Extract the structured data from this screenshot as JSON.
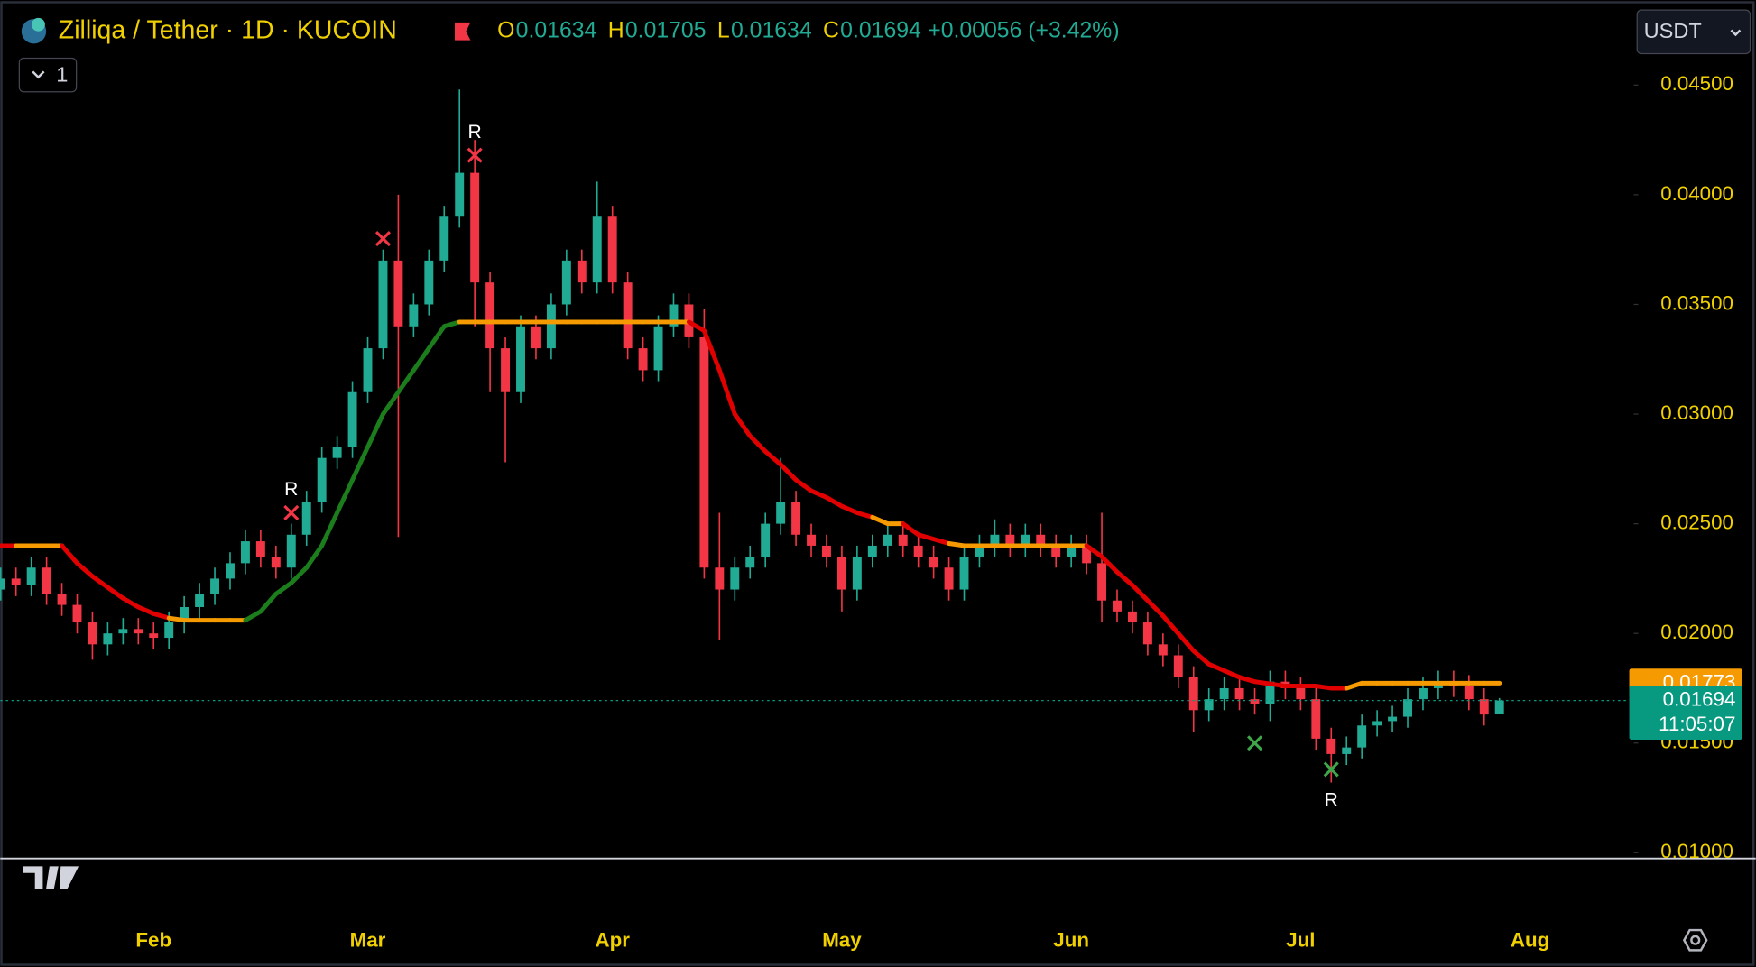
{
  "chart_data": {
    "type": "candlestick",
    "title": "Zilliqa / Tether · 1D · KUCOIN",
    "ohlc_legend": [
      {
        "key": "O",
        "value": "0.01634"
      },
      {
        "key": "H",
        "value": "0.01705"
      },
      {
        "key": "L",
        "value": "0.01634"
      },
      {
        "key": "C",
        "value": "0.01694"
      }
    ],
    "change": "+0.00056 (+3.42%)",
    "currency": "USDT",
    "pane_toggle": "1",
    "categories": [
      null,
      null,
      null,
      null,
      null,
      null,
      null,
      null,
      null,
      null,
      "Feb",
      null,
      null,
      null,
      null,
      null,
      null,
      null,
      null,
      null,
      null,
      null,
      null,
      null,
      "Mar",
      null,
      null,
      null,
      null,
      null,
      null,
      null,
      null,
      null,
      null,
      null,
      null,
      null,
      null,
      null,
      "Apr",
      null,
      null,
      null,
      null,
      null,
      null,
      null,
      null,
      null,
      null,
      null,
      null,
      null,
      null,
      "May",
      null,
      null,
      null,
      null,
      null,
      null,
      null,
      null,
      null,
      null,
      null,
      null,
      null,
      null,
      "Jun",
      null,
      null,
      null,
      null,
      null,
      null,
      null,
      null,
      null,
      null,
      null,
      null,
      null,
      null,
      "Jul",
      null,
      null,
      null,
      null,
      null,
      null,
      null,
      null,
      null,
      null,
      null,
      null,
      null,
      null,
      "Aug"
    ],
    "open": [
      0.022,
      0.0225,
      0.0222,
      0.023,
      0.0218,
      0.0213,
      0.0205,
      0.0195,
      0.02,
      0.0202,
      0.02,
      0.0198,
      0.0205,
      0.0212,
      0.0218,
      0.0225,
      0.0232,
      0.0242,
      0.0235,
      0.023,
      0.0245,
      0.026,
      0.028,
      0.0285,
      0.031,
      0.033,
      0.037,
      0.034,
      0.035,
      0.037,
      0.039,
      0.041,
      0.036,
      0.033,
      0.031,
      0.034,
      0.033,
      0.035,
      0.037,
      0.036,
      0.039,
      0.036,
      0.033,
      0.032,
      0.034,
      0.035,
      0.0335,
      0.023,
      0.022,
      0.023,
      0.0235,
      0.025,
      0.026,
      0.0245,
      0.024,
      0.0235,
      0.022,
      0.0235,
      0.024,
      0.0245,
      0.024,
      0.0235,
      0.023,
      0.022,
      0.0235,
      0.024,
      0.0245,
      0.024,
      0.0245,
      0.024,
      0.0235,
      0.024,
      0.0232,
      0.0215,
      0.021,
      0.0205,
      0.0195,
      0.019,
      0.018,
      0.0165,
      0.017,
      0.0175,
      0.017,
      0.0168,
      0.0178,
      0.0175,
      0.017,
      0.0152,
      0.0145,
      0.0148,
      0.0158,
      0.016,
      0.0162,
      0.017,
      0.0175,
      0.0178,
      0.0176,
      0.017,
      0.01634,
      null,
      null
    ],
    "high": [
      0.023,
      0.023,
      0.0235,
      0.0235,
      0.0223,
      0.0218,
      0.021,
      0.0205,
      0.0207,
      0.0207,
      0.0205,
      0.021,
      0.0217,
      0.0223,
      0.023,
      0.0237,
      0.0247,
      0.0247,
      0.024,
      0.025,
      0.0265,
      0.0285,
      0.029,
      0.0315,
      0.0335,
      0.0375,
      0.04,
      0.0355,
      0.0375,
      0.0395,
      0.0448,
      0.0425,
      0.0365,
      0.0335,
      0.0345,
      0.0345,
      0.0355,
      0.0375,
      0.0375,
      0.0406,
      0.0395,
      0.0365,
      0.0335,
      0.0345,
      0.0355,
      0.0355,
      0.0348,
      0.0255,
      0.0235,
      0.024,
      0.0255,
      0.028,
      0.0265,
      0.025,
      0.0245,
      0.024,
      0.024,
      0.0245,
      0.025,
      0.025,
      0.0245,
      0.024,
      0.0235,
      0.024,
      0.0245,
      0.0252,
      0.025,
      0.025,
      0.025,
      0.0245,
      0.0245,
      0.0245,
      0.0255,
      0.022,
      0.0215,
      0.021,
      0.02,
      0.0195,
      0.0185,
      0.0175,
      0.018,
      0.018,
      0.0175,
      0.0183,
      0.0183,
      0.018,
      0.0175,
      0.0157,
      0.0153,
      0.0163,
      0.0165,
      0.0167,
      0.0175,
      0.018,
      0.0183,
      0.0183,
      0.0181,
      0.0175,
      0.01705,
      null,
      null
    ],
    "low": [
      0.0215,
      0.0217,
      0.0217,
      0.0213,
      0.0208,
      0.02,
      0.0188,
      0.019,
      0.0195,
      0.0195,
      0.0193,
      0.0193,
      0.02,
      0.0207,
      0.0213,
      0.022,
      0.0227,
      0.023,
      0.0225,
      0.0225,
      0.024,
      0.0255,
      0.0275,
      0.028,
      0.0305,
      0.0325,
      0.0244,
      0.0335,
      0.0345,
      0.0365,
      0.0385,
      0.034,
      0.031,
      0.0278,
      0.0305,
      0.0325,
      0.0325,
      0.0345,
      0.0355,
      0.0355,
      0.0355,
      0.0325,
      0.0315,
      0.0315,
      0.0335,
      0.033,
      0.0225,
      0.0197,
      0.0215,
      0.0225,
      0.023,
      0.0245,
      0.024,
      0.0235,
      0.023,
      0.021,
      0.0215,
      0.023,
      0.0235,
      0.0235,
      0.023,
      0.0225,
      0.0215,
      0.0215,
      0.023,
      0.0235,
      0.0235,
      0.0235,
      0.0235,
      0.023,
      0.023,
      0.0227,
      0.0205,
      0.0205,
      0.02,
      0.019,
      0.0185,
      0.0175,
      0.0155,
      0.016,
      0.0165,
      0.0165,
      0.0163,
      0.016,
      0.017,
      0.0165,
      0.0147,
      0.0132,
      0.014,
      0.0143,
      0.0153,
      0.0155,
      0.0157,
      0.0165,
      0.017,
      0.0171,
      0.0165,
      0.0158,
      0.01634,
      null,
      null
    ],
    "close": [
      0.0225,
      0.0222,
      0.023,
      0.0218,
      0.0213,
      0.0205,
      0.0195,
      0.02,
      0.0202,
      0.02,
      0.0198,
      0.0205,
      0.0212,
      0.0218,
      0.0225,
      0.0232,
      0.0242,
      0.0235,
      0.023,
      0.0245,
      0.026,
      0.028,
      0.0285,
      0.031,
      0.033,
      0.037,
      0.034,
      0.035,
      0.037,
      0.039,
      0.041,
      0.036,
      0.033,
      0.031,
      0.034,
      0.033,
      0.035,
      0.037,
      0.036,
      0.039,
      0.036,
      0.033,
      0.032,
      0.034,
      0.035,
      0.0335,
      0.023,
      0.022,
      0.023,
      0.0235,
      0.025,
      0.026,
      0.0245,
      0.024,
      0.0235,
      0.022,
      0.0235,
      0.024,
      0.0245,
      0.024,
      0.0235,
      0.023,
      0.022,
      0.0235,
      0.024,
      0.0245,
      0.024,
      0.0245,
      0.024,
      0.0235,
      0.024,
      0.0232,
      0.0215,
      0.021,
      0.0205,
      0.0195,
      0.019,
      0.018,
      0.0165,
      0.017,
      0.0175,
      0.017,
      0.0168,
      0.0178,
      0.0175,
      0.017,
      0.0152,
      0.0145,
      0.0148,
      0.0158,
      0.016,
      0.0162,
      0.017,
      0.0175,
      0.0178,
      0.0176,
      0.017,
      0.0163,
      0.01694,
      null,
      null
    ],
    "up_color": "#22ab94",
    "down_color": "#f23645",
    "trail": {
      "values": [
        0.024,
        0.024,
        0.024,
        0.024,
        0.024,
        0.0232,
        0.0226,
        0.0221,
        0.0216,
        0.0212,
        0.0209,
        0.0207,
        0.0206,
        0.0206,
        0.0206,
        0.0206,
        0.0206,
        0.021,
        0.0218,
        0.0223,
        0.023,
        0.024,
        0.0255,
        0.027,
        0.0285,
        0.03,
        0.031,
        0.032,
        0.033,
        0.034,
        0.0342,
        0.0342,
        0.0342,
        0.0342,
        0.0342,
        0.0342,
        0.0342,
        0.0342,
        0.0342,
        0.0342,
        0.0342,
        0.0342,
        0.0342,
        0.0342,
        0.0342,
        0.0342,
        0.0338,
        0.032,
        0.03,
        0.029,
        0.0283,
        0.0277,
        0.027,
        0.0265,
        0.0262,
        0.0258,
        0.0255,
        0.0253,
        0.025,
        0.025,
        0.0245,
        0.0243,
        0.0241,
        0.024,
        0.024,
        0.024,
        0.024,
        0.024,
        0.024,
        0.024,
        0.024,
        0.024,
        0.0235,
        0.0228,
        0.0222,
        0.0215,
        0.0208,
        0.02,
        0.0192,
        0.0186,
        0.0183,
        0.018,
        0.0178,
        0.0177,
        0.0176,
        0.0176,
        0.0176,
        0.0175,
        0.0175,
        0.01773,
        0.01773,
        0.01773,
        0.01773,
        0.01773,
        0.01773,
        0.01773,
        0.01773,
        0.01773,
        0.01773,
        null,
        null
      ],
      "colors": [
        "#e00000",
        "#e00000",
        "#f59a00",
        "#f59a00",
        "#f59a00",
        "#e00000",
        "#e00000",
        "#e00000",
        "#e00000",
        "#e00000",
        "#e00000",
        "#e00000",
        "#f59a00",
        "#f59a00",
        "#f59a00",
        "#f59a00",
        "#f59a00",
        "#1b7d1b",
        "#1b7d1b",
        "#1b7d1b",
        "#1b7d1b",
        "#1b7d1b",
        "#1b7d1b",
        "#1b7d1b",
        "#1b7d1b",
        "#1b7d1b",
        "#1b7d1b",
        "#1b7d1b",
        "#1b7d1b",
        "#1b7d1b",
        "#1b7d1b",
        "#f59a00",
        "#f59a00",
        "#f59a00",
        "#f59a00",
        "#f59a00",
        "#f59a00",
        "#f59a00",
        "#f59a00",
        "#f59a00",
        "#f59a00",
        "#f59a00",
        "#f59a00",
        "#f59a00",
        "#f59a00",
        "#f59a00",
        "#e00000",
        "#e00000",
        "#e00000",
        "#e00000",
        "#e00000",
        "#e00000",
        "#e00000",
        "#e00000",
        "#e00000",
        "#e00000",
        "#e00000",
        "#e00000",
        "#f59a00",
        "#f59a00",
        "#e00000",
        "#e00000",
        "#e00000",
        "#f59a00",
        "#f59a00",
        "#f59a00",
        "#f59a00",
        "#f59a00",
        "#f59a00",
        "#f59a00",
        "#f59a00",
        "#f59a00",
        "#e00000",
        "#e00000",
        "#e00000",
        "#e00000",
        "#e00000",
        "#e00000",
        "#e00000",
        "#e00000",
        "#e00000",
        "#e00000",
        "#e00000",
        "#e00000",
        "#e00000",
        "#e00000",
        "#e00000",
        "#e00000",
        "#e00000",
        "#f59a00",
        "#f59a00",
        "#f59a00",
        "#f59a00",
        "#f59a00",
        "#f59a00",
        "#f59a00",
        "#f59a00",
        "#f59a00",
        "#f59a00",
        null,
        null
      ]
    },
    "signals": [
      {
        "x": 19,
        "y": 0.0255,
        "color": "#f23645",
        "text": "R",
        "above": true
      },
      {
        "x": 25,
        "y": 0.038,
        "color": "#f23645"
      },
      {
        "x": 31,
        "y": 0.0418,
        "color": "#f23645",
        "text": "R",
        "above": true
      },
      {
        "x": 82,
        "y": 0.015,
        "color": "#3fa64a"
      },
      {
        "x": 87,
        "y": 0.0138,
        "color": "#3fa64a",
        "text": "R",
        "above": false
      }
    ],
    "price_tags": [
      {
        "value": 0.01773,
        "label": "0.01773",
        "color": "#f59a00"
      },
      {
        "value": 0.01694,
        "label": "0.01694",
        "sub": "11:05:07",
        "color": "#089981"
      }
    ],
    "ylim": [
      0.00974,
      0.04888
    ],
    "yticks": [
      {
        "value": 0.045,
        "label": "0.04500"
      },
      {
        "value": 0.04,
        "label": "0.04000"
      },
      {
        "value": 0.035,
        "label": "0.03500"
      },
      {
        "value": 0.03,
        "label": "0.03000"
      },
      {
        "value": 0.025,
        "label": "0.02500"
      },
      {
        "value": 0.02,
        "label": "0.02000"
      },
      {
        "value": 0.015,
        "label": "0.01500"
      },
      {
        "value": 0.01,
        "label": "0.01000"
      }
    ],
    "tick_color": "#f0d000"
  }
}
